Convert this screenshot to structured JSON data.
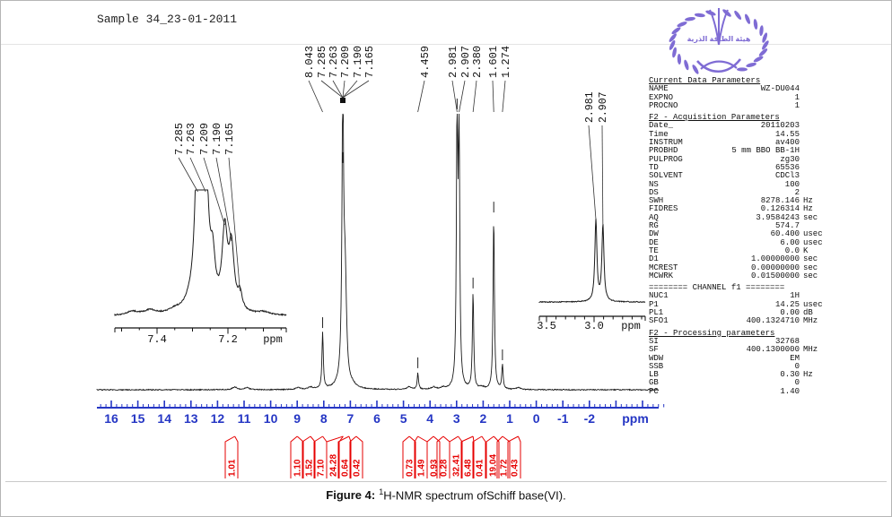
{
  "header": {
    "sample_label": "Sample 34_23-01-2011"
  },
  "logo": {
    "arabic_text": "هيئة الطاقة الذرية",
    "color": "#7f6cd4"
  },
  "caption": {
    "bold": "Figure 4:",
    "superscript": "1",
    "rest": "H-NMR spectrum ofSchiff base(VI)."
  },
  "axis": {
    "unit_label": "ppm",
    "color": "#2536c4",
    "tick_labels": [
      "16",
      "15",
      "14",
      "13",
      "12",
      "11",
      "10",
      "9",
      "8",
      "7",
      "6",
      "5",
      "4",
      "3",
      "2",
      "1",
      "0",
      "-1",
      "-2"
    ]
  },
  "integral_color": "#e60000",
  "inset_left": {
    "peak_labels": [
      "7.285",
      "7.263",
      "7.209",
      "7.190",
      "7.165"
    ],
    "tick_labels": [
      "7.4",
      "7.2"
    ],
    "unit_label": "ppm"
  },
  "inset_right": {
    "peak_labels": [
      "2.981",
      "2.907"
    ],
    "tick_labels": [
      "3.5",
      "3.0"
    ],
    "unit_label": "ppm"
  },
  "chart_data": {
    "type": "line",
    "title": "1H-NMR spectrum ofSchiff base(VI)",
    "xlabel": "ppm",
    "x_range": [
      16.5,
      -4.9
    ],
    "x_reversed": true,
    "grid": false,
    "peak_labels": [
      "8.043",
      "7.285",
      "7.263",
      "7.209",
      "7.190",
      "7.165",
      "4.459",
      "2.981",
      "2.907",
      "2.380",
      "1.601",
      "1.274"
    ],
    "peaks": [
      {
        "ppm": 8.043,
        "rel": 20.5
      },
      {
        "ppm": 7.305,
        "rel": 11.4,
        "w": 0.05
      },
      {
        "ppm": 7.285,
        "rel": 80.5
      },
      {
        "ppm": 7.263,
        "rel": 17.9,
        "w": 0.05
      },
      {
        "ppm": 7.23,
        "rel": 4.0,
        "w": 0.2
      },
      {
        "ppm": 7.209,
        "rel": 15.6,
        "w": 0.05
      },
      {
        "ppm": 7.19,
        "rel": 13.7,
        "w": 0.05
      },
      {
        "ppm": 7.165,
        "rel": 6.5,
        "w": 0.05
      },
      {
        "ppm": 4.459,
        "rel": 5.9
      },
      {
        "ppm": 2.981,
        "rel": 100.0
      },
      {
        "ppm": 2.907,
        "rel": 92.8
      },
      {
        "ppm": 2.38,
        "rel": 34.9
      },
      {
        "ppm": 1.601,
        "rel": 62.5
      },
      {
        "ppm": 1.274,
        "rel": 8.8
      },
      {
        "ppm": 11.35,
        "rel": 1.0,
        "w": 0.1
      },
      {
        "ppm": 10.9,
        "rel": 0.8,
        "w": 0.1
      },
      {
        "ppm": 8.96,
        "rel": 0.7,
        "w": 0.1
      },
      {
        "ppm": 8.5,
        "rel": 0.8,
        "w": 0.1
      },
      {
        "ppm": 6.9,
        "rel": 0.6,
        "w": 0.1
      },
      {
        "ppm": 4.78,
        "rel": 1.0,
        "w": 0.1
      },
      {
        "ppm": 3.87,
        "rel": 0.8,
        "w": 0.1
      },
      {
        "ppm": 3.5,
        "rel": 0.6,
        "w": 0.1
      },
      {
        "ppm": 2.05,
        "rel": 0.7,
        "w": 0.1
      },
      {
        "ppm": 0.68,
        "rel": 0.7,
        "w": 0.1
      }
    ],
    "integrals": [
      {
        "value": "1.01",
        "ppm": 11.35
      },
      {
        "value": "1.10",
        "ppm": 9.0
      },
      {
        "value": "1.52",
        "ppm": 8.5
      },
      {
        "value": "7.10",
        "ppm": 8.04
      },
      {
        "value": "24.28",
        "ppm": 7.27
      },
      {
        "value": "0.64",
        "ppm": 7.05
      },
      {
        "value": "0.42",
        "ppm": 6.78
      },
      {
        "value": "0.73",
        "ppm": 4.78
      },
      {
        "value": "1.49",
        "ppm": 4.46
      },
      {
        "value": "0.93",
        "ppm": 3.87
      },
      {
        "value": "0.28",
        "ppm": 3.5
      },
      {
        "value": "32.41",
        "ppm": 2.94
      },
      {
        "value": "6.48",
        "ppm": 2.38
      },
      {
        "value": "0.41",
        "ppm": 2.05
      },
      {
        "value": "19.04",
        "ppm": 1.6
      },
      {
        "value": "1.72",
        "ppm": 1.27
      },
      {
        "value": "0.43",
        "ppm": 0.68
      }
    ]
  },
  "parameters": {
    "sections": [
      {
        "title": "Current Data Parameters",
        "underline": true,
        "rows": [
          [
            "NAME",
            "WZ-DU044",
            ""
          ],
          [
            "EXPNO",
            "1",
            ""
          ],
          [
            "PROCNO",
            "1",
            ""
          ]
        ]
      },
      {
        "title": "F2 - Acquisition Parameters",
        "underline": true,
        "rows": [
          [
            "Date_",
            "20110203",
            ""
          ],
          [
            "Time",
            "14.55",
            ""
          ],
          [
            "INSTRUM",
            "av400",
            ""
          ],
          [
            "PROBHD",
            "5 mm BBO BB-1H",
            ""
          ],
          [
            "PULPROG",
            "zg30",
            ""
          ],
          [
            "TD",
            "65536",
            ""
          ],
          [
            "SOLVENT",
            "CDCl3",
            ""
          ],
          [
            "NS",
            "100",
            ""
          ],
          [
            "DS",
            "2",
            ""
          ],
          [
            "SWH",
            "8278.146",
            "Hz"
          ],
          [
            "FIDRES",
            "0.126314",
            "Hz"
          ],
          [
            "AQ",
            "3.9584243",
            "sec"
          ],
          [
            "RG",
            "574.7",
            ""
          ],
          [
            "DW",
            "60.400",
            "usec"
          ],
          [
            "DE",
            "6.00",
            "usec"
          ],
          [
            "TE",
            "0.0",
            "K"
          ],
          [
            "D1",
            "1.00000000",
            "sec"
          ],
          [
            "MCREST",
            "0.00000000",
            "sec"
          ],
          [
            "MCWRK",
            "0.01500000",
            "sec"
          ]
        ]
      },
      {
        "title": "======== CHANNEL f1 ========",
        "underline": false,
        "rows": [
          [
            "NUC1",
            "1H",
            ""
          ],
          [
            "P1",
            "14.25",
            "usec"
          ],
          [
            "PL1",
            "0.00",
            "dB"
          ],
          [
            "SFO1",
            "400.1324710",
            "MHz"
          ]
        ]
      },
      {
        "title": "F2 - Processing parameters",
        "underline": true,
        "rows": [
          [
            "SI",
            "32768",
            ""
          ],
          [
            "SF",
            "400.1300000",
            "MHz"
          ],
          [
            "WDW",
            "EM",
            ""
          ],
          [
            "SSB",
            "0",
            ""
          ],
          [
            "LB",
            "0.30",
            "Hz"
          ],
          [
            "GB",
            "0",
            ""
          ],
          [
            "PC",
            "1.40",
            ""
          ]
        ]
      }
    ]
  }
}
